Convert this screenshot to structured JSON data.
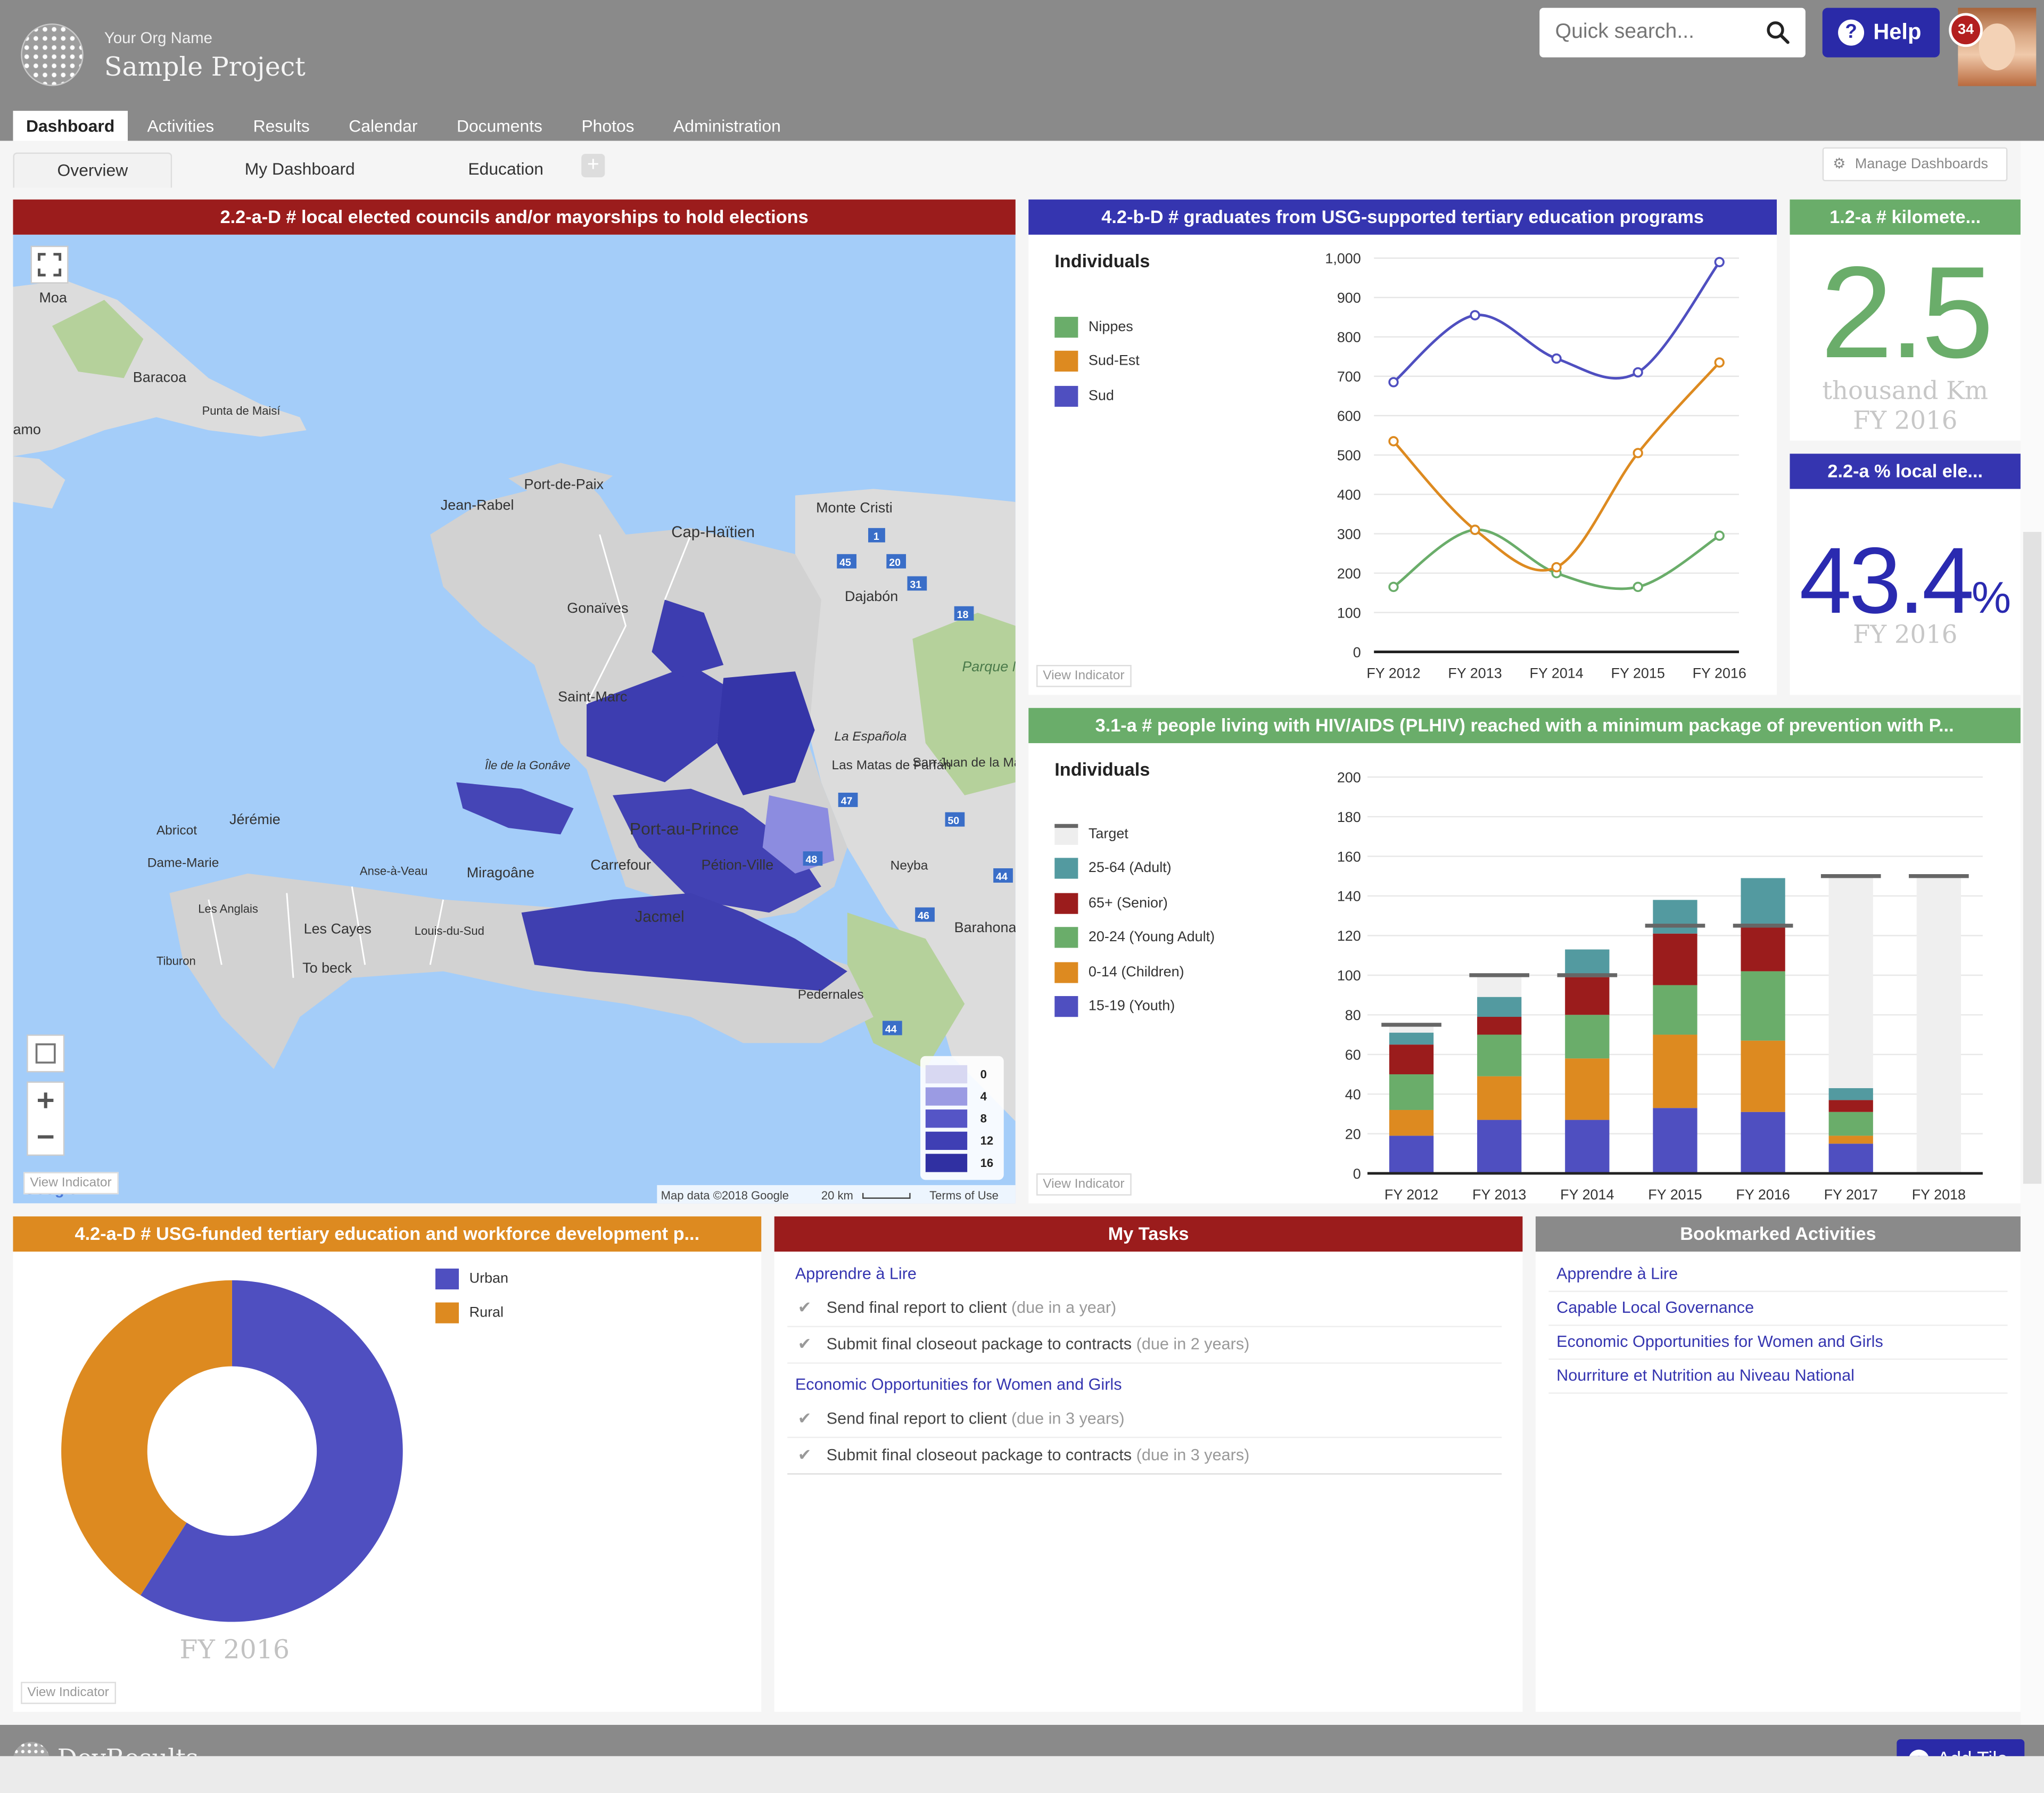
{
  "header": {
    "org_name": "Your Org Name",
    "project_name": "Sample Project",
    "search_placeholder": "Quick search...",
    "help_label": "Help",
    "notification_count": "34"
  },
  "nav": {
    "tabs": [
      "Dashboard",
      "Activities",
      "Results",
      "Calendar",
      "Documents",
      "Photos",
      "Administration"
    ],
    "active": "Dashboard"
  },
  "subnav": {
    "tabs": [
      "Overview",
      "My Dashboard",
      "Education"
    ],
    "active": "Overview",
    "manage_label": "Manage Dashboards"
  },
  "colors": {
    "red": "#9b1c1c",
    "blue": "#3535b0",
    "green": "#6aad6a",
    "orange": "#dd8a20",
    "grey": "#8a8a8a",
    "teal": "#539aa0",
    "maroon": "#9b1c1c"
  },
  "tiles": {
    "map": {
      "title": "2.2-a-D # local elected councils and/or mayorships to hold elections",
      "legend": [
        "0",
        "4",
        "8",
        "12",
        "16"
      ],
      "labels": [
        "Moa",
        "Baracoa",
        "Punta de Maisí",
        "amo",
        "Port-de-Paix",
        "Jean-Rabel",
        "Cap-Haïtien",
        "Monte Cristi",
        "Dajabón",
        "Gonaïves",
        "Saint-Marc",
        "Île de la Gonâve",
        "Port-au-Prince",
        "La Española",
        "Las Matas de Farfán",
        "San Juan de la Maguana",
        "Jérémie",
        "Abricot",
        "Dame-Marie",
        "Miragoâne",
        "Carrefour",
        "Pétion-Ville",
        "Neyba",
        "Les Cayes",
        "Jacmel",
        "Barahona",
        "Pedernales",
        "Parque Nacional Armando Bermúdez",
        "Anse-à-Veau",
        "Les Anglais",
        "Tiburon",
        "Louis-du-Sud",
        "To beck"
      ],
      "attribution": "Map data ©2018 Google",
      "scale": "20 km",
      "terms": "Terms of Use",
      "view_indicator": "View Indicator",
      "google_text": "Google"
    },
    "graduates": {
      "title": "4.2-b-D # graduates from USG-supported tertiary education programs",
      "unit": "Individuals",
      "view_indicator": "View Indicator"
    },
    "km": {
      "title": "1.2-a # kilomete...",
      "value": "2.5",
      "unit": "thousand Km",
      "period": "FY 2016"
    },
    "local": {
      "title": "2.2-a % local ele...",
      "value": "43.4",
      "suffix": "%",
      "period": "FY 2016"
    },
    "plhiv": {
      "title": "3.1-a # people living with HIV/AIDS (PLHIV) reached with a minimum package of prevention with P...",
      "unit": "Individuals",
      "view_indicator": "View Indicator"
    },
    "workforce": {
      "title": "4.2-a-D # USG-funded tertiary education and workforce development p...",
      "period": "FY 2016",
      "view_indicator": "View Indicator"
    },
    "tasks": {
      "title": "My Tasks",
      "groups": [
        {
          "activity": "Apprendre à Lire",
          "items": [
            {
              "text": "Send final report to client",
              "due": "(due in a year)"
            },
            {
              "text": "Submit final closeout package to contracts",
              "due": "(due in 2 years)"
            }
          ]
        },
        {
          "activity": "Economic Opportunities for Women and Girls",
          "items": [
            {
              "text": "Send final report to client",
              "due": "(due in 3 years)"
            },
            {
              "text": "Submit final closeout package to contracts",
              "due": "(due in 3 years)"
            }
          ]
        }
      ]
    },
    "bookmarks": {
      "title": "Bookmarked Activities",
      "items": [
        "Apprendre à Lire",
        "Capable Local Governance",
        "Economic Opportunities for Women and Girls",
        "Nourriture et Nutrition au Niveau National"
      ]
    }
  },
  "footer": {
    "brand": "DevResults",
    "add_tile": "Add Tile"
  },
  "chart_data": [
    {
      "type": "line",
      "title": "4.2-b-D # graduates from USG-supported tertiary education programs",
      "ylabel": "Individuals",
      "categories": [
        "FY 2012",
        "FY 2013",
        "FY 2014",
        "FY 2015",
        "FY 2016"
      ],
      "ylim": [
        0,
        1000
      ],
      "yticks": [
        0,
        100,
        200,
        300,
        400,
        500,
        600,
        700,
        800,
        900,
        1000
      ],
      "ytick_labels": [
        "0",
        "100",
        "200",
        "300",
        "400",
        "500",
        "600",
        "700",
        "800",
        "900",
        "1,000"
      ],
      "grid": true,
      "legend": "left",
      "series": [
        {
          "name": "Nippes",
          "color": "#6aad6a",
          "values": [
            165,
            310,
            200,
            165,
            295
          ]
        },
        {
          "name": "Sud-Est",
          "color": "#dd8a20",
          "values": [
            535,
            310,
            215,
            505,
            735
          ]
        },
        {
          "name": "Sud",
          "color": "#4f4fc0",
          "values": [
            685,
            855,
            745,
            710,
            990
          ]
        }
      ]
    },
    {
      "type": "bar",
      "stacked": true,
      "title": "3.1-a # people living with HIV/AIDS (PLHIV) reached with a minimum package of prevention with P...",
      "ylabel": "Individuals",
      "categories": [
        "FY 2012",
        "FY 2013",
        "FY 2014",
        "FY 2015",
        "FY 2016",
        "FY 2017",
        "FY 2018"
      ],
      "ylim": [
        0,
        200
      ],
      "yticks": [
        0,
        20,
        40,
        60,
        80,
        100,
        120,
        140,
        160,
        180,
        200
      ],
      "grid": true,
      "legend": "left",
      "target": {
        "name": "Target",
        "color": "#666666",
        "values": [
          75,
          100,
          100,
          125,
          125,
          150,
          150
        ]
      },
      "series": [
        {
          "name": "15-19 (Youth)",
          "color": "#4f4fc0",
          "values": [
            19,
            27,
            27,
            33,
            31,
            15,
            0
          ]
        },
        {
          "name": "0-14 (Children)",
          "color": "#dd8a20",
          "values": [
            13,
            22,
            31,
            37,
            36,
            4,
            0
          ]
        },
        {
          "name": "20-24 (Young Adult)",
          "color": "#6aad6a",
          "values": [
            18,
            21,
            22,
            25,
            35,
            12,
            0
          ]
        },
        {
          "name": "65+ (Senior)",
          "color": "#9b1c1c",
          "values": [
            15,
            9,
            19,
            26,
            24,
            6,
            0
          ]
        },
        {
          "name": "25-64 (Adult)",
          "color": "#539aa0",
          "values": [
            6,
            10,
            14,
            17,
            23,
            6,
            0
          ]
        }
      ]
    },
    {
      "type": "pie",
      "donut": true,
      "title": "4.2-a-D # USG-funded tertiary education and workforce development p...",
      "series": [
        {
          "name": "Urban",
          "color": "#4f4fc0",
          "value": 59
        },
        {
          "name": "Rural",
          "color": "#dd8a20",
          "value": 41
        }
      ]
    }
  ]
}
